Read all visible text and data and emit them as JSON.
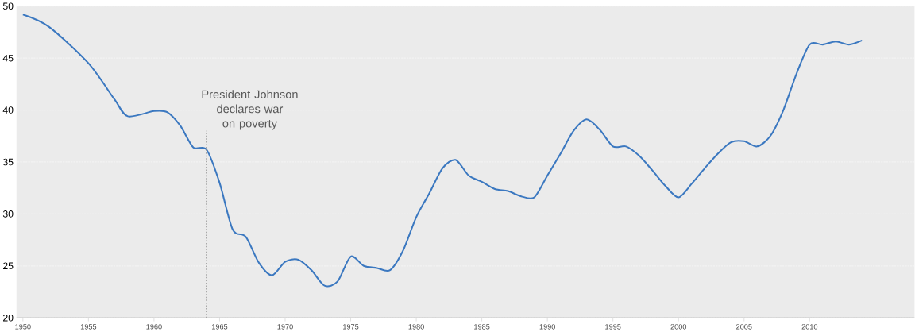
{
  "chart_data": {
    "type": "line",
    "x": [
      1950,
      1952,
      1955,
      1957,
      1958,
      1960,
      1961,
      1962,
      1963,
      1964,
      1965,
      1966,
      1967,
      1968,
      1969,
      1970,
      1971,
      1972,
      1973,
      1974,
      1975,
      1976,
      1977,
      1978,
      1979,
      1980,
      1981,
      1982,
      1983,
      1984,
      1985,
      1986,
      1987,
      1988,
      1989,
      1990,
      1991,
      1992,
      1993,
      1994,
      1995,
      1996,
      1997,
      1998,
      1999,
      2000,
      2001,
      2002,
      2003,
      2004,
      2005,
      2006,
      2007,
      2008,
      2009,
      2010,
      2011,
      2012,
      2013,
      2014
    ],
    "series": [
      {
        "color": "#3b78c0",
        "values": [
          49.2,
          48.0,
          44.5,
          41.0,
          39.4,
          39.9,
          39.8,
          38.5,
          36.4,
          36.2,
          33.0,
          28.5,
          27.8,
          25.3,
          24.1,
          25.4,
          25.6,
          24.6,
          23.1,
          23.5,
          25.9,
          25.0,
          24.8,
          24.6,
          26.5,
          29.7,
          32.0,
          34.4,
          35.2,
          33.7,
          33.1,
          32.4,
          32.2,
          31.7,
          31.6,
          33.7,
          35.8,
          38.0,
          39.1,
          38.1,
          36.5,
          36.5,
          35.6,
          34.2,
          32.7,
          31.6,
          32.9,
          34.4,
          35.8,
          36.9,
          37.0,
          36.5,
          37.5,
          40.0,
          43.5,
          46.3,
          46.3,
          46.6,
          46.3,
          46.7
        ]
      }
    ],
    "xlim": [
      1949.5,
      2018
    ],
    "ylim": [
      20,
      50
    ],
    "xticks": [
      1950,
      1955,
      1960,
      1965,
      1970,
      1975,
      1980,
      1985,
      1990,
      1995,
      2000,
      2005,
      2010
    ],
    "yticks": [
      20,
      25,
      30,
      35,
      40,
      45,
      50
    ],
    "grid": "y",
    "line_style": "solid",
    "marker": "none",
    "ref_lines": [
      {
        "axis": "x",
        "value": 1964,
        "label": "President Johnson declares war on poverty",
        "color": "#999999",
        "line_style": "dotted"
      }
    ]
  }
}
